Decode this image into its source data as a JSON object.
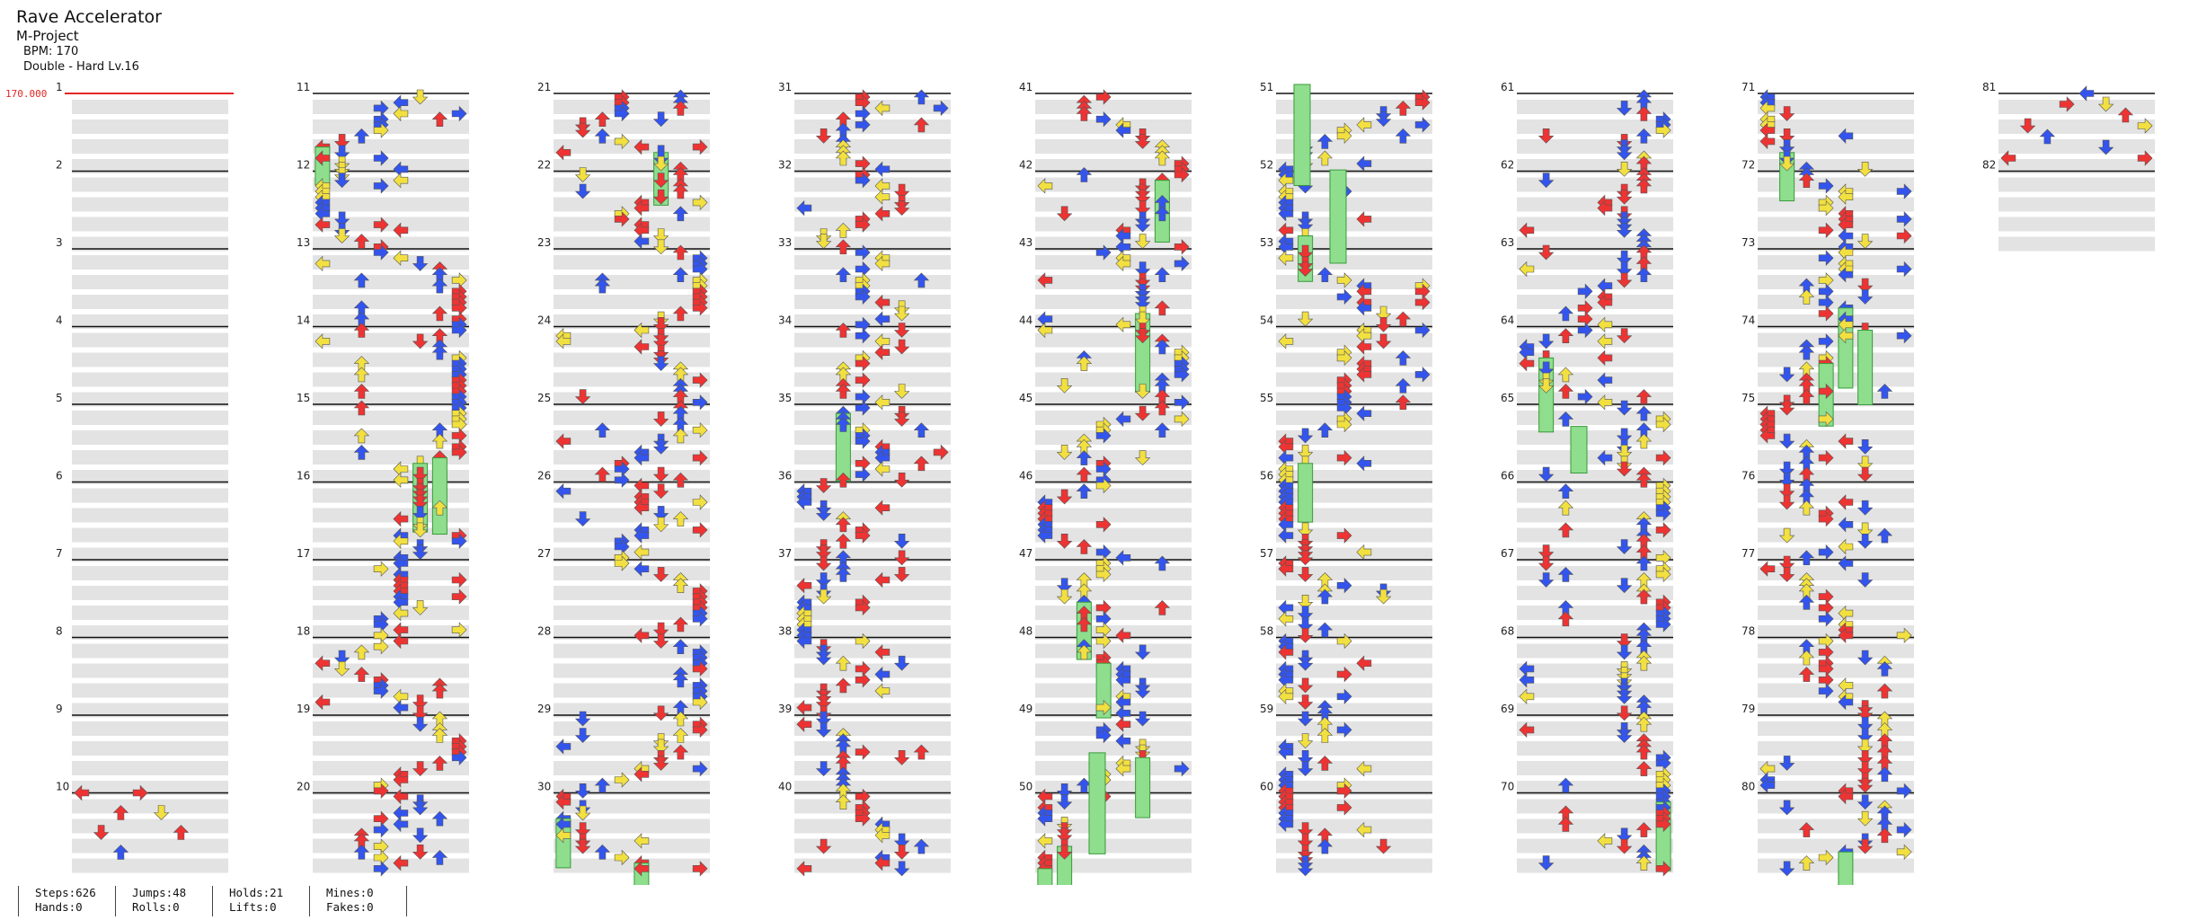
{
  "song": {
    "title": "Rave Accelerator",
    "artist": "M-Project",
    "bpm_text": "BPM: 170",
    "difficulty_text": "Double - Hard  Lv.16"
  },
  "bpm_marker": {
    "label": "170.000",
    "color": "#e32626"
  },
  "chart": {
    "total_measures": 82,
    "measures_per_column": 10,
    "lanes": 8,
    "arrow_colors": {
      "red": "#ee3333",
      "blue": "#3355ee",
      "yellow": "#f2e040",
      "hold": "#8ede8e"
    },
    "arrow_icons": [
      "arrow-left-icon",
      "arrow-down-icon",
      "arrow-up-icon",
      "arrow-right-icon"
    ]
  },
  "stats": [
    {
      "line1": "Steps:626",
      "line2": "Hands:0"
    },
    {
      "line1": "Jumps:48",
      "line2": "Rolls:0"
    },
    {
      "line1": "Holds:21",
      "line2": "Lifts:0"
    },
    {
      "line1": "Mines:0",
      "line2": "Fakes:0"
    }
  ]
}
